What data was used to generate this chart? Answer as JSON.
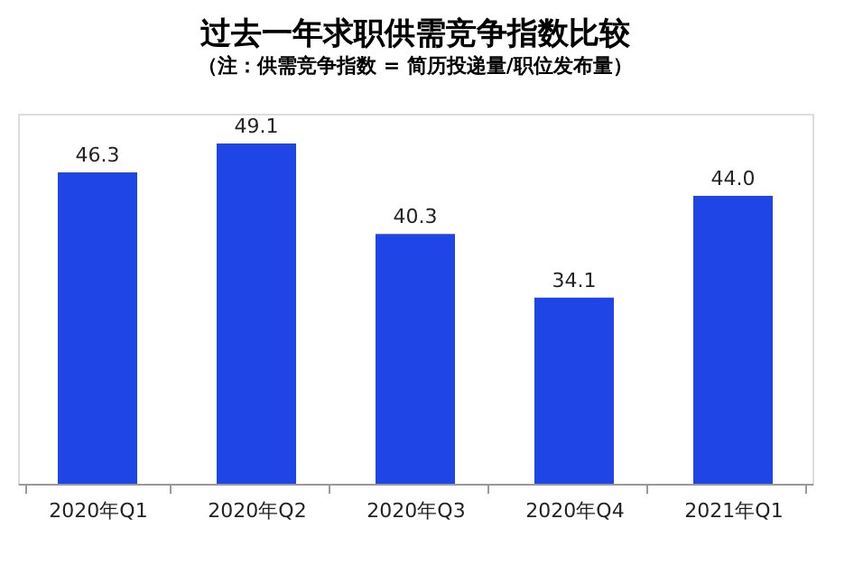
{
  "chart_data": {
    "type": "bar",
    "title": "过去一年求职供需竞争指数比较",
    "subtitle": "（注：供需竞争指数 = 简历投递量/职位发布量）",
    "categories": [
      "2020年Q1",
      "2020年Q2",
      "2020年Q3",
      "2020年Q4",
      "2021年Q1"
    ],
    "values": [
      46.3,
      49.1,
      40.3,
      34.1,
      44.0
    ],
    "value_labels": [
      "46.3",
      "49.1",
      "40.3",
      "34.1",
      "44.0"
    ],
    "color": "#1f45e6",
    "ylim": [
      16,
      52
    ],
    "tick_labels": "x",
    "grid": false
  }
}
